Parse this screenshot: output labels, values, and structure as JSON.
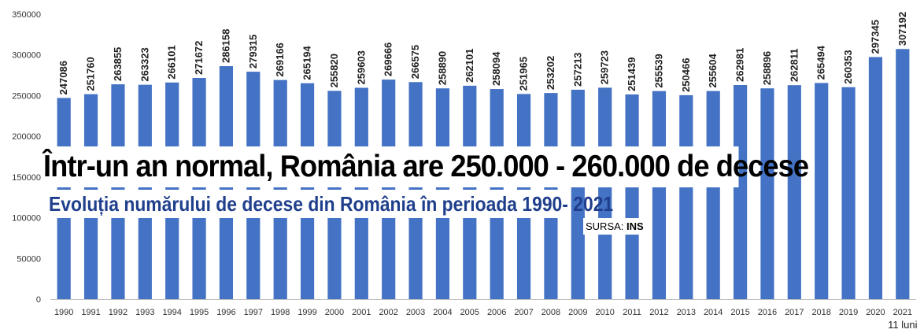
{
  "chart_data": {
    "type": "bar",
    "categories": [
      "1990",
      "1991",
      "1992",
      "1993",
      "1994",
      "1995",
      "1996",
      "1997",
      "1998",
      "1999",
      "2000",
      "2001",
      "2002",
      "2003",
      "2004",
      "2005",
      "2006",
      "2007",
      "2008",
      "2009",
      "2010",
      "2011",
      "2012",
      "2013",
      "2014",
      "2015",
      "2016",
      "2017",
      "2018",
      "2019",
      "2020",
      "2021"
    ],
    "values": [
      247086,
      251760,
      263855,
      263323,
      266101,
      271672,
      286158,
      279315,
      269166,
      265194,
      255820,
      259603,
      269666,
      266575,
      258890,
      262101,
      258094,
      251965,
      253202,
      257213,
      259723,
      251439,
      255539,
      250466,
      255604,
      262981,
      258896,
      262811,
      265494,
      260353,
      297345,
      307192
    ],
    "labels": [
      "247086",
      "251760",
      "263855",
      "263323",
      "266101",
      "271672",
      "286158",
      "279315",
      "269166",
      "265194",
      "255820",
      "259603",
      "269666",
      "266575",
      "258890",
      "262101",
      "258094",
      "251965",
      "253202",
      "257213",
      "259723",
      "251439",
      "255539",
      "250466",
      "255604",
      "262981",
      "258896",
      "262811",
      "265494",
      "260353",
      "297345",
      "307192"
    ],
    "yticks": [
      "0",
      "50000",
      "100000",
      "150000",
      "200000",
      "250000",
      "300000",
      "350000"
    ],
    "ylim": [
      0,
      350000
    ],
    "x_note": "11 luni",
    "bar_color": "#4472c4",
    "grid": false,
    "legend": "none"
  },
  "headline": "Într-un an normal, România are 250.000 - 260.000 de decese",
  "subtitle": "Evoluția numărului de decese din România în perioada 1990- 2021",
  "source": {
    "label": "SURSA: ",
    "value": "INS"
  }
}
